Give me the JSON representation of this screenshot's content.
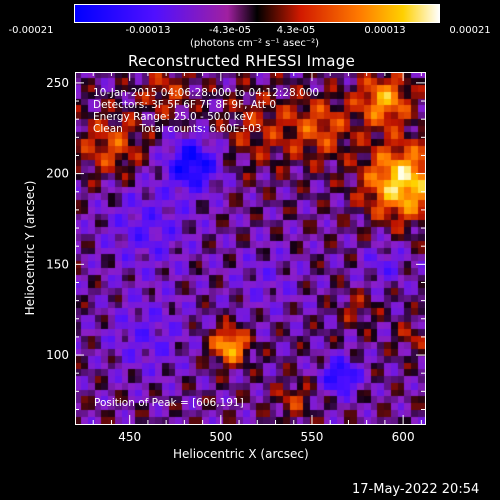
{
  "chart_data": {
    "type": "heatmap",
    "title": "Reconstructed RHESSI Image",
    "xlabel": "Heliocentric X (arcsec)",
    "ylabel": "Heliocentric Y (arcsec)",
    "xlim": [
      420,
      612
    ],
    "ylim": [
      62,
      256
    ],
    "x_ticks": [
      450,
      500,
      550,
      600
    ],
    "y_ticks": [
      100,
      150,
      200,
      250
    ],
    "colorbar": {
      "label": "(photons cm⁻² s⁻¹ asec⁻²)",
      "range": [
        -0.00021,
        0.00021
      ],
      "tick_labels": [
        "-0.00021",
        "-0.00013",
        "-4.3e-05",
        "4.3e-05",
        "0.00013",
        "0.00021"
      ]
    },
    "annotations": {
      "time": "10-Jan-2015 04:06:28.000 to 04:12:28.000",
      "detectors": "Detectors: 3F 5F 6F 7F 8F 9F, Att 0",
      "energy": "Energy Range: 25.0 - 50.0 keV",
      "method": "Clean     Total counts: 6.60E+03",
      "peak": "Position of Peak = [606,191]"
    },
    "peak": {
      "x": 606,
      "y": 191
    },
    "features": [
      {
        "x": 600,
        "y": 195,
        "w": 20,
        "a": 1.0
      },
      {
        "x": 590,
        "y": 240,
        "w": 14,
        "a": 0.75
      },
      {
        "x": 555,
        "y": 225,
        "w": 18,
        "a": 0.45
      },
      {
        "x": 505,
        "y": 105,
        "w": 10,
        "a": 0.85
      },
      {
        "x": 440,
        "y": 215,
        "w": 18,
        "a": 0.45
      },
      {
        "x": 520,
        "y": 225,
        "w": 22,
        "a": 0.3
      },
      {
        "x": 470,
        "y": 245,
        "w": 14,
        "a": 0.35
      },
      {
        "x": 540,
        "y": 75,
        "w": 10,
        "a": 0.35
      },
      {
        "x": 575,
        "y": 125,
        "w": 10,
        "a": 0.25
      },
      {
        "x": 605,
        "y": 110,
        "w": 8,
        "a": 0.3
      },
      {
        "x": 485,
        "y": 205,
        "w": 14,
        "a": -0.85
      },
      {
        "x": 566,
        "y": 88,
        "w": 10,
        "a": -0.75
      },
      {
        "x": 460,
        "y": 170,
        "w": 24,
        "a": -0.35
      },
      {
        "x": 460,
        "y": 110,
        "w": 22,
        "a": -0.3
      },
      {
        "x": 525,
        "y": 140,
        "w": 20,
        "a": -0.2
      },
      {
        "x": 590,
        "y": 150,
        "w": 12,
        "a": -0.3
      }
    ]
  },
  "footer": {
    "timestamp": "17-May-2022 20:54"
  }
}
